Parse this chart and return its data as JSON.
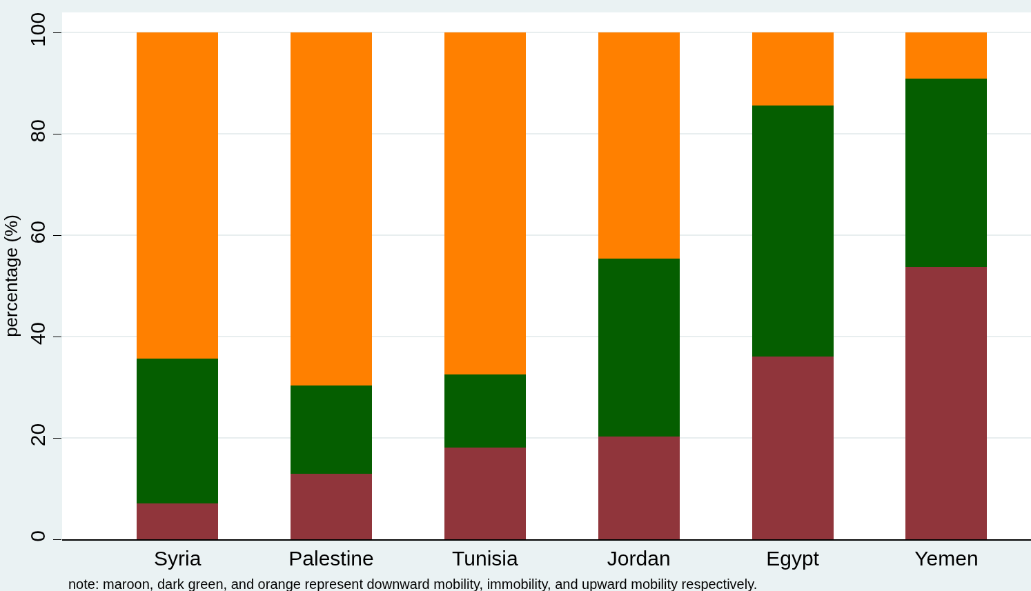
{
  "chart_data": {
    "type": "bar",
    "stacked": true,
    "ylabel": "percentage (%)",
    "categories": [
      "Syria",
      "Palestine",
      "Tunisia",
      "Jordan",
      "Egypt",
      "Yemen"
    ],
    "series": [
      {
        "color": "#90353b",
        "values": [
          7.1,
          12.9,
          18.1,
          20.3,
          36.1,
          53.8
        ]
      },
      {
        "color": "#055e00",
        "values": [
          28.6,
          17.4,
          14.4,
          35.1,
          49.5,
          37.1
        ]
      },
      {
        "color": "#ff8000",
        "values": [
          64.3,
          69.7,
          67.5,
          44.6,
          14.4,
          9.1
        ]
      }
    ],
    "ylim": [
      0,
      104
    ],
    "yticks": [
      0,
      20,
      40,
      60,
      80,
      100
    ],
    "grid": "y",
    "annotations": [
      "note: maroon, dark green, and orange represent downward mobility, immobility, and upward mobility respectively."
    ]
  }
}
